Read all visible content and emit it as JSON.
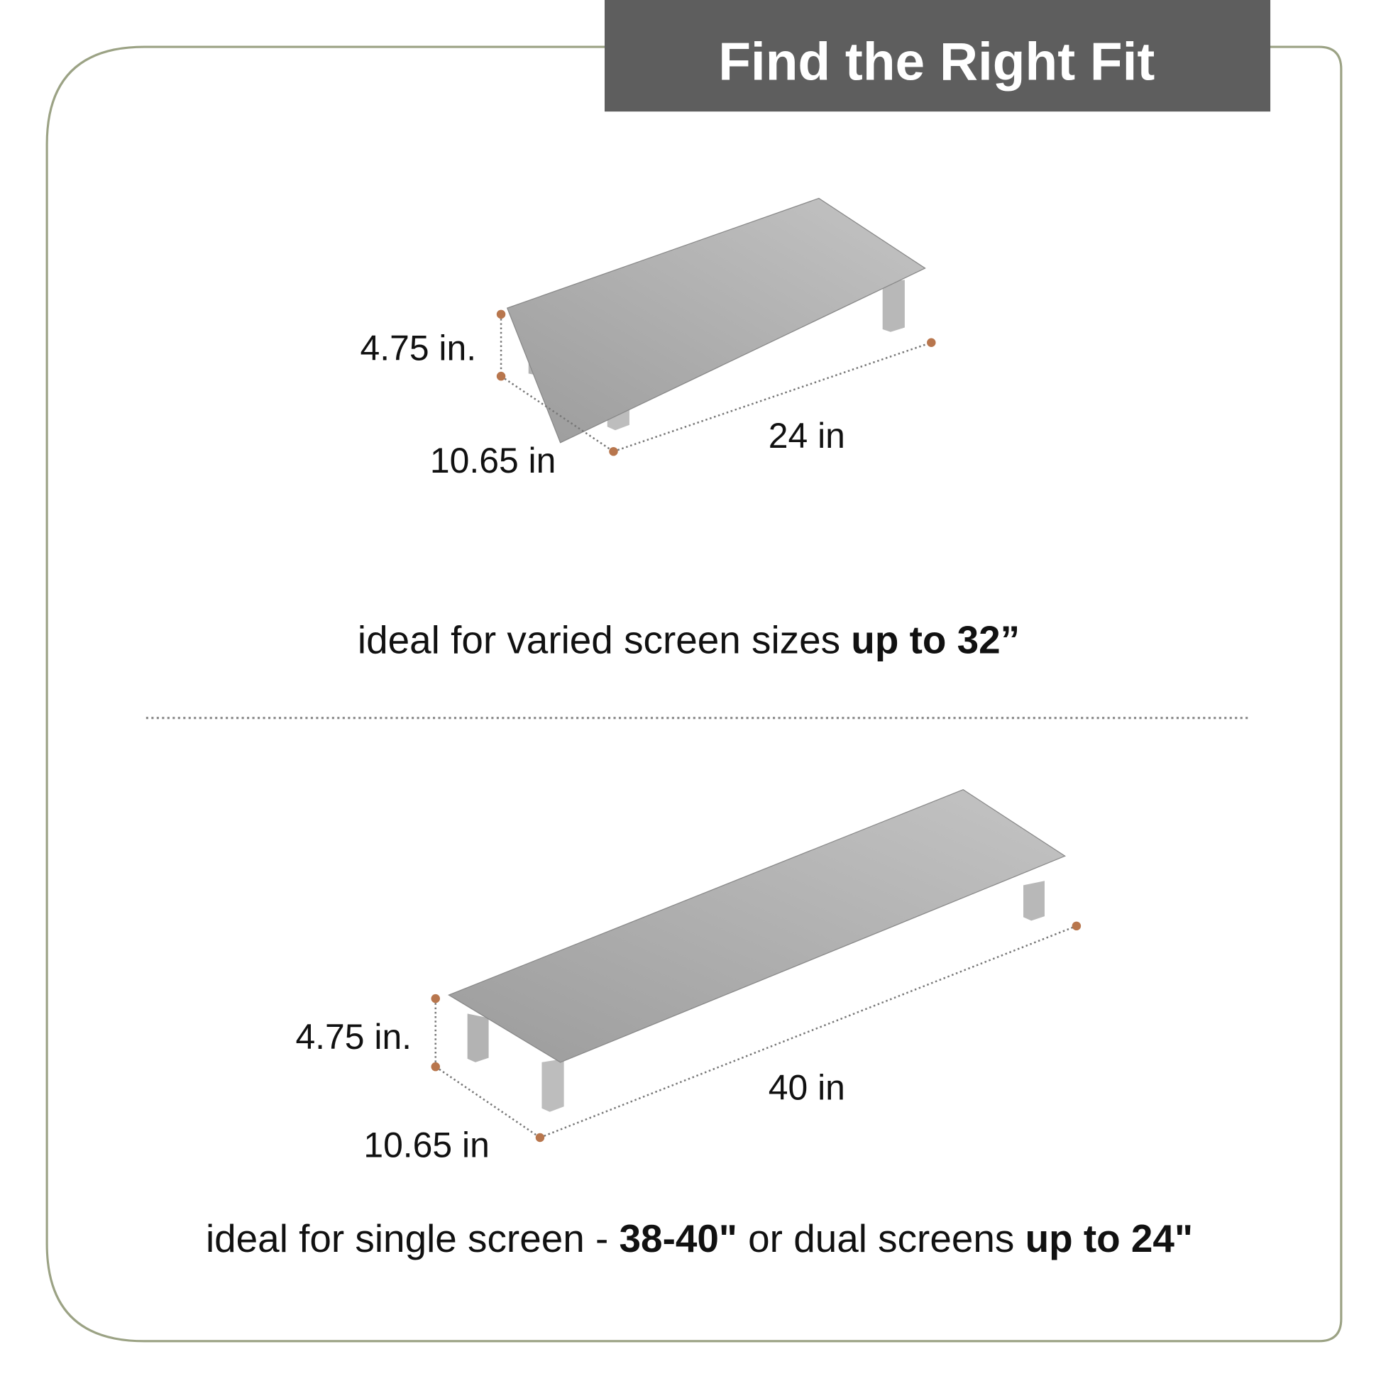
{
  "header": {
    "title": "Find the Right Fit"
  },
  "colors": {
    "frame": "#9ba284",
    "banner": "#5e5e5e",
    "dot": "#b8764d",
    "stand": "#a9a9a9"
  },
  "stand_small": {
    "height_label": "4.75 in.",
    "depth_label": "10.65 in",
    "width_label": "24 in",
    "caption_regular": "ideal for varied screen sizes ",
    "caption_bold": "up to 32”"
  },
  "stand_large": {
    "height_label": "4.75 in.",
    "depth_label": "10.65 in",
    "width_label": "40 in",
    "caption_part1": "ideal for single screen - ",
    "caption_part2": "38-40\"",
    "caption_part3": " or dual screens ",
    "caption_part4": "up to 24\""
  }
}
